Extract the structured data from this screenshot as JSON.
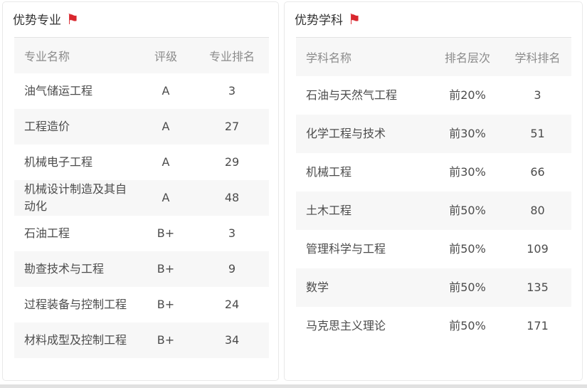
{
  "page": {
    "accent_color": "#d9272e",
    "stripe_color": "#f7f7f7"
  },
  "left_panel": {
    "title": "优势专业",
    "flag_icon": "⚑",
    "columns": [
      "专业名称",
      "评级",
      "专业排名"
    ],
    "rows": [
      {
        "name": "油气储运工程",
        "rating": "A",
        "rank": "3"
      },
      {
        "name": "工程造价",
        "rating": "A",
        "rank": "27"
      },
      {
        "name": "机械电子工程",
        "rating": "A",
        "rank": "29"
      },
      {
        "name": "机械设计制造及其自动化",
        "rating": "A",
        "rank": "48"
      },
      {
        "name": "石油工程",
        "rating": "B+",
        "rank": "3"
      },
      {
        "name": "勘查技术与工程",
        "rating": "B+",
        "rank": "9"
      },
      {
        "name": "过程装备与控制工程",
        "rating": "B+",
        "rank": "24"
      },
      {
        "name": "材料成型及控制工程",
        "rating": "B+",
        "rank": "34"
      }
    ]
  },
  "right_panel": {
    "title": "优势学科",
    "flag_icon": "⚑",
    "columns": [
      "学科名称",
      "排名层次",
      "学科排名"
    ],
    "rows": [
      {
        "name": "石油与天然气工程",
        "tier": "前20%",
        "rank": "3"
      },
      {
        "name": "化学工程与技术",
        "tier": "前30%",
        "rank": "51"
      },
      {
        "name": "机械工程",
        "tier": "前30%",
        "rank": "66"
      },
      {
        "name": "土木工程",
        "tier": "前50%",
        "rank": "80"
      },
      {
        "name": "管理科学与工程",
        "tier": "前50%",
        "rank": "109"
      },
      {
        "name": "数学",
        "tier": "前50%",
        "rank": "135"
      },
      {
        "name": "马克思主义理论",
        "tier": "前50%",
        "rank": "171"
      }
    ]
  }
}
